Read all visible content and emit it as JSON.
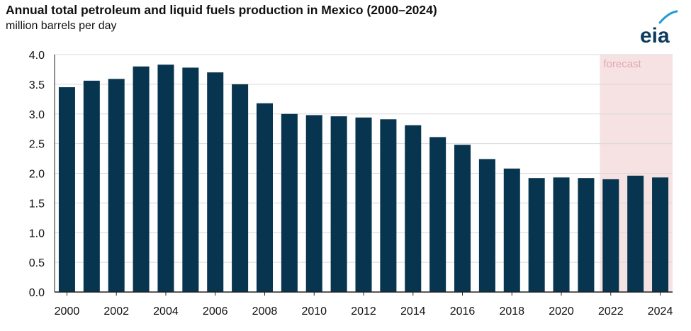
{
  "header": {
    "title": "Annual total petroleum and liquid fuels production in Mexico (2000–2024)",
    "subtitle": "million barrels per day",
    "logo_text": "eia"
  },
  "colors": {
    "bar": "#07344F",
    "forecast_shade": "#F6E2E3",
    "annotation_text": "#E4A8AE",
    "gridline": "#D9D9D9",
    "axis": "#222222",
    "logo_text": "#0D3B5E",
    "logo_arc": "#1E9DD8"
  },
  "chart_data": {
    "type": "bar",
    "title": "Annual total petroleum and liquid fuels production in Mexico (2000–2024)",
    "ylabel": "million barrels per day",
    "xlabel": "",
    "categories": [
      "2000",
      "2001",
      "2002",
      "2003",
      "2004",
      "2005",
      "2006",
      "2007",
      "2008",
      "2009",
      "2010",
      "2011",
      "2012",
      "2013",
      "2014",
      "2015",
      "2016",
      "2017",
      "2018",
      "2019",
      "2020",
      "2021",
      "2022",
      "2023",
      "2024"
    ],
    "values": [
      3.45,
      3.56,
      3.59,
      3.8,
      3.83,
      3.78,
      3.7,
      3.5,
      3.18,
      3.0,
      2.98,
      2.96,
      2.94,
      2.91,
      2.81,
      2.61,
      2.48,
      2.24,
      2.08,
      1.92,
      1.93,
      1.92,
      1.9,
      1.96,
      1.93
    ],
    "x_tick_labels": [
      "2000",
      "2002",
      "2004",
      "2006",
      "2008",
      "2010",
      "2012",
      "2014",
      "2016",
      "2018",
      "2020",
      "2022",
      "2024"
    ],
    "y_tick_labels": [
      "0.0",
      "0.5",
      "1.0",
      "1.5",
      "2.0",
      "2.5",
      "3.0",
      "3.5",
      "4.0"
    ],
    "ylim": [
      0,
      4.0
    ],
    "grid": true,
    "forecast_start": "2022",
    "annotations": [
      {
        "text": "forecast"
      }
    ]
  }
}
